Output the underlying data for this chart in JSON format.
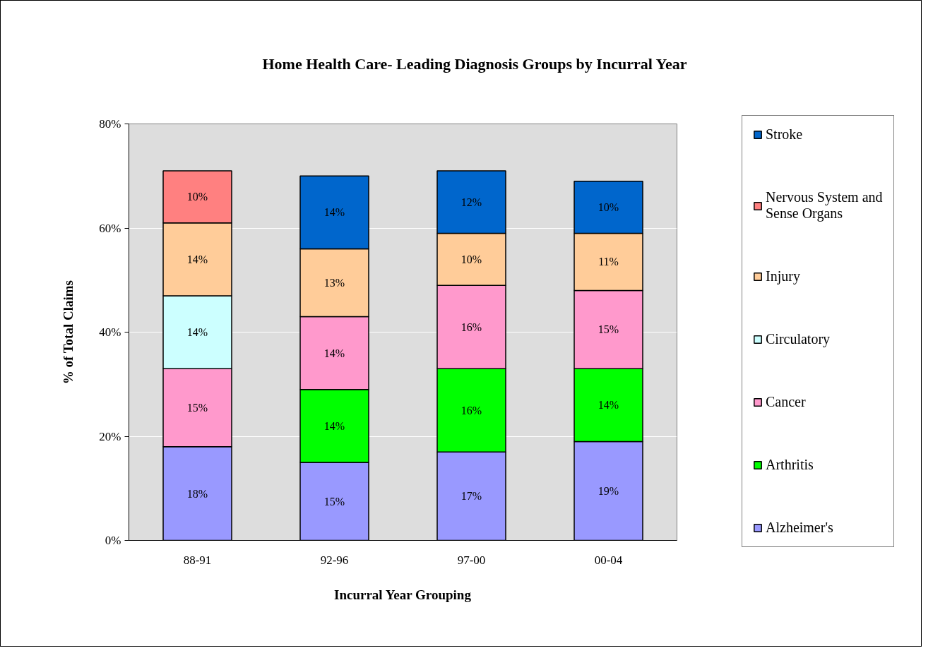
{
  "chart_data": {
    "type": "bar",
    "title": "Home Health Care- Leading Diagnosis Groups by Incurral Year",
    "xlabel": "Incurral Year Grouping",
    "ylabel": "% of Total Claims",
    "categories": [
      "88-91",
      "92-96",
      "97-00",
      "00-04"
    ],
    "stacked": true,
    "series": [
      {
        "name": "Alzheimer's",
        "color": "#9999ff",
        "values": [
          18,
          15,
          17,
          19
        ],
        "value_labels": [
          "18%",
          "15%",
          "17%",
          "19%"
        ]
      },
      {
        "name": "Arthritis",
        "color": "#00ff00",
        "values": [
          null,
          14,
          16,
          14
        ],
        "value_labels": [
          null,
          "14%",
          "16%",
          "14%"
        ]
      },
      {
        "name": "Cancer",
        "color": "#ff99cc",
        "values": [
          15,
          14,
          16,
          15
        ],
        "value_labels": [
          "15%",
          "14%",
          "16%",
          "15%"
        ]
      },
      {
        "name": "Circulatory",
        "color": "#ccffff",
        "values": [
          14,
          null,
          null,
          null
        ],
        "value_labels": [
          "14%",
          null,
          null,
          null
        ]
      },
      {
        "name": "Injury",
        "color": "#ffcc99",
        "values": [
          14,
          13,
          10,
          11
        ],
        "value_labels": [
          "14%",
          "13%",
          "10%",
          "11%"
        ]
      },
      {
        "name": "Nervous System and Sense Organs",
        "color": "#ff8080",
        "values": [
          10,
          null,
          null,
          null
        ],
        "value_labels": [
          "10%",
          null,
          null,
          null
        ]
      },
      {
        "name": "Stroke",
        "color": "#0066cc",
        "values": [
          null,
          14,
          12,
          10
        ],
        "value_labels": [
          null,
          "14%",
          "12%",
          "10%"
        ]
      }
    ],
    "ylim": [
      0,
      80
    ],
    "yticks": [
      {
        "value": 0,
        "label": "0%"
      },
      {
        "value": 20,
        "label": "20%"
      },
      {
        "value": 40,
        "label": "40%"
      },
      {
        "value": 60,
        "label": "60%"
      },
      {
        "value": 80,
        "label": "80%"
      }
    ],
    "grid": "y",
    "legend": "right"
  }
}
